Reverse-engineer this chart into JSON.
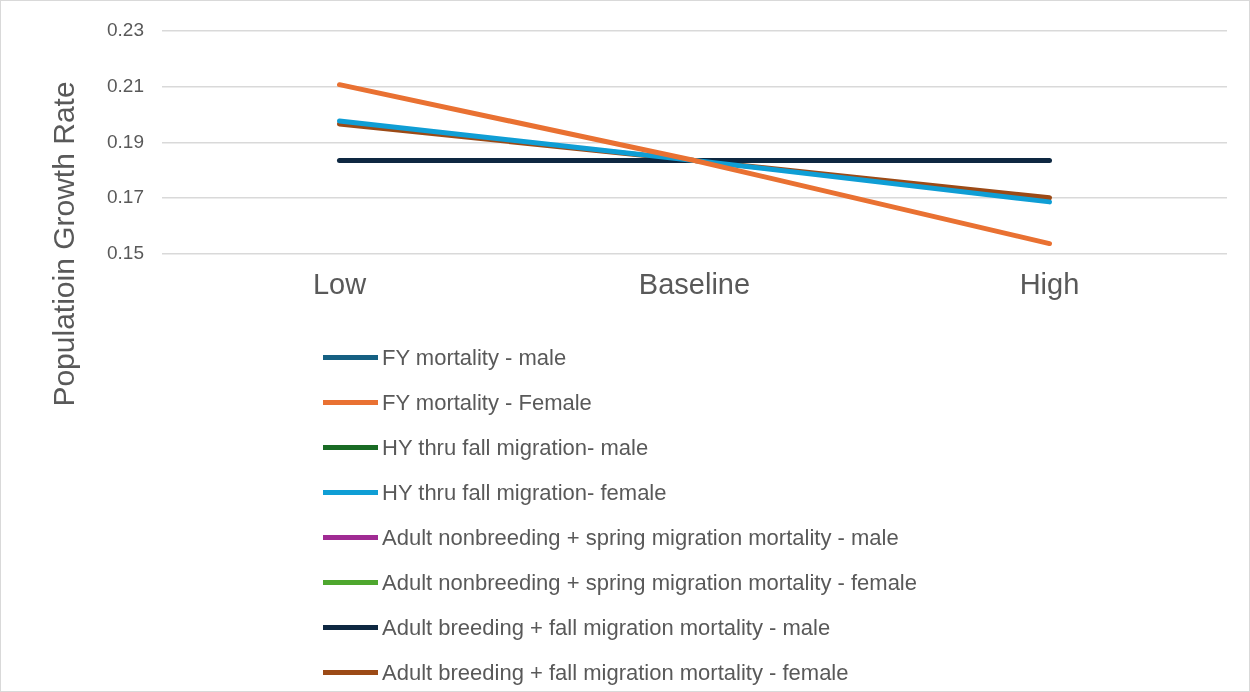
{
  "chart_data": {
    "type": "line",
    "ylabel": "Populatioin Growth Rate",
    "categories": [
      "Low",
      "Baseline",
      "High"
    ],
    "ylim": [
      0.15,
      0.23
    ],
    "yticks": [
      0.15,
      0.17,
      0.19,
      0.21,
      0.23
    ],
    "grid": "y",
    "legend": "bottom",
    "marker": "none",
    "line_style": "solid",
    "series": [
      {
        "name": "FY mortality - male",
        "color": "#156082",
        "values": [
          null,
          null,
          null
        ]
      },
      {
        "name": "FY mortality - Female",
        "color": "#e97132",
        "values": [
          0.2106,
          0.1835,
          0.1538
        ]
      },
      {
        "name": "HY thru fall migration- male",
        "color": "#196b24",
        "values": [
          null,
          null,
          null
        ]
      },
      {
        "name": "HY thru fall migration- female",
        "color": "#0f9ed5",
        "values": [
          0.1976,
          0.1835,
          0.1687
        ]
      },
      {
        "name": "Adult nonbreeding + spring migration mortality - male",
        "color": "#a02b93",
        "values": [
          null,
          null,
          null
        ]
      },
      {
        "name": "Adult nonbreeding + spring migration mortality - female",
        "color": "#4ea72e",
        "values": [
          null,
          null,
          null
        ]
      },
      {
        "name": "Adult breeding + fall migration mortality - male",
        "color": "#0e2841",
        "values": [
          0.1835,
          0.1835,
          0.1835
        ]
      },
      {
        "name": "Adult breeding + fall migration mortality - female",
        "color": "#9c4a16",
        "values": [
          0.1965,
          0.1835,
          0.1702
        ]
      }
    ]
  }
}
